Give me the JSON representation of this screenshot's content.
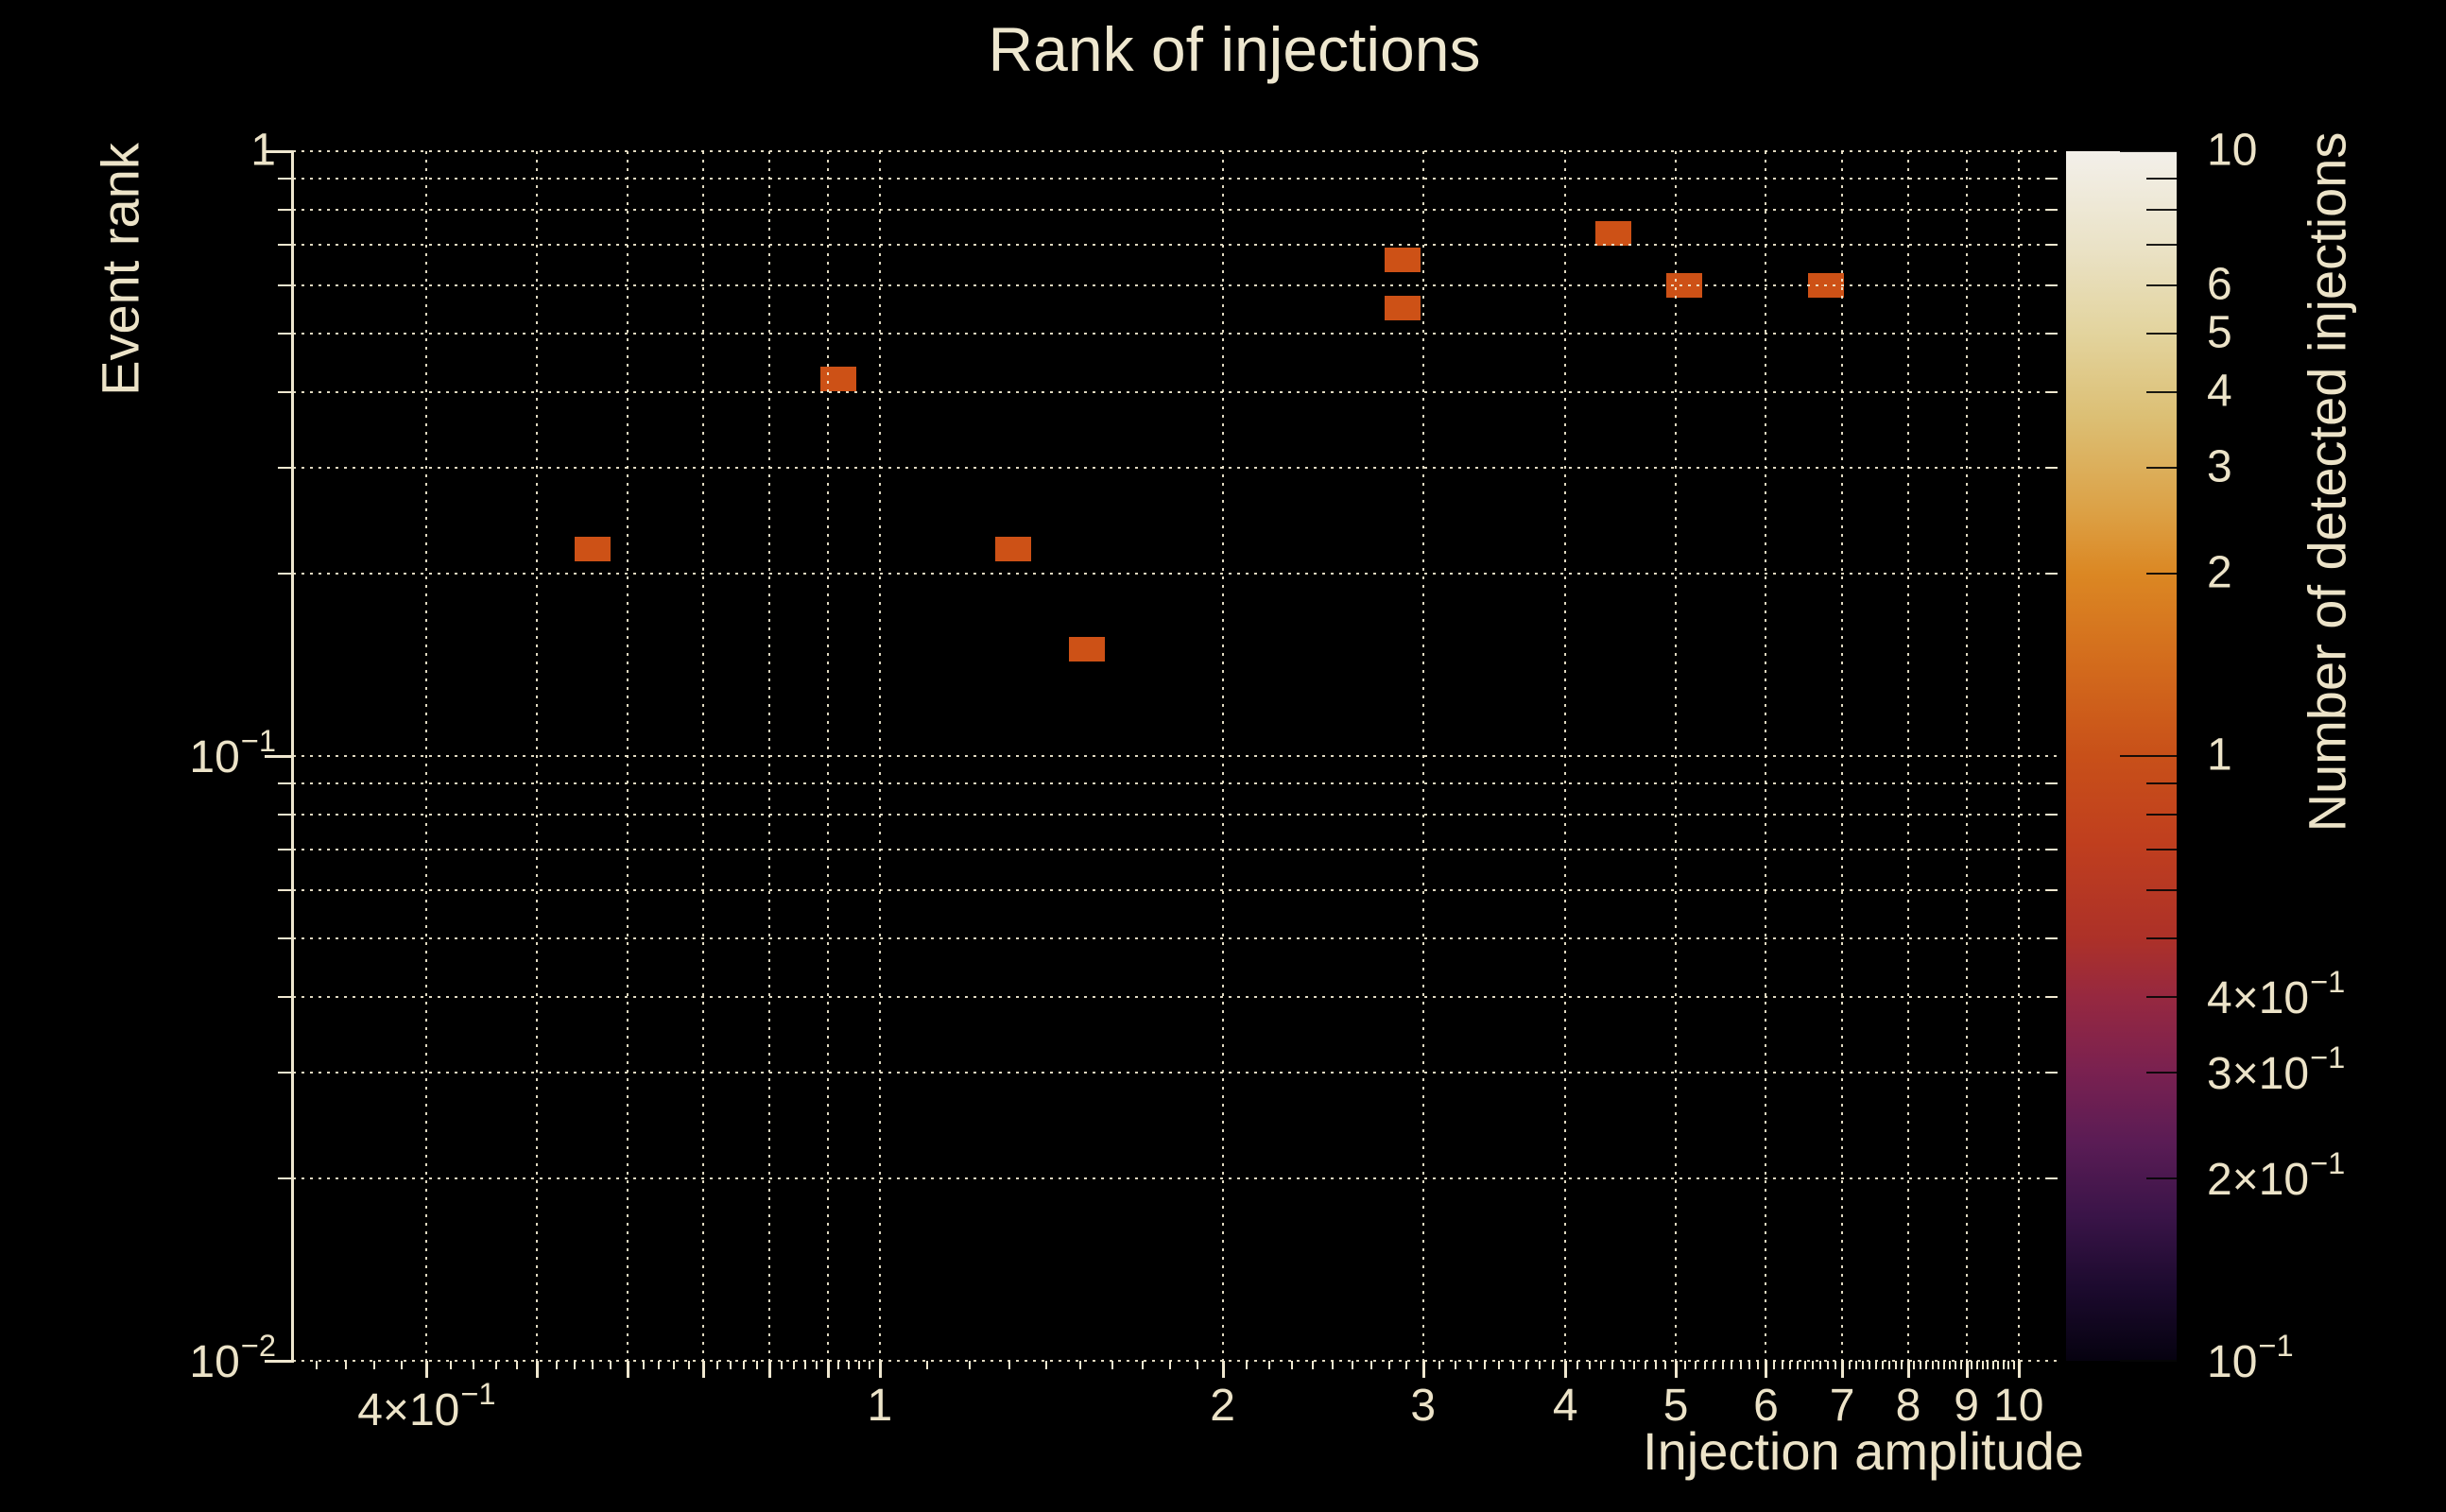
{
  "title": "Rank of injections",
  "colors": {
    "background": "#000000",
    "foreground": "#ece3c8",
    "grid": "#f2ead0",
    "bin_count_1": "#cd5116",
    "colorbar_gradient_stops": [
      {
        "t": 0.0,
        "color": "#f3f0ea"
      },
      {
        "t": 0.08,
        "color": "#eae2c6"
      },
      {
        "t": 0.15,
        "color": "#e3d49e"
      },
      {
        "t": 0.22,
        "color": "#dcbf74"
      },
      {
        "t": 0.3,
        "color": "#dca044"
      },
      {
        "t": 0.35,
        "color": "#db8723"
      },
      {
        "t": 0.43,
        "color": "#d2691c"
      },
      {
        "t": 0.5,
        "color": "#c85019"
      },
      {
        "t": 0.57,
        "color": "#c03f1e"
      },
      {
        "t": 0.65,
        "color": "#ad3128"
      },
      {
        "t": 0.7,
        "color": "#962840"
      },
      {
        "t": 0.76,
        "color": "#7a2150"
      },
      {
        "t": 0.82,
        "color": "#5a1c55"
      },
      {
        "t": 0.88,
        "color": "#3a1448"
      },
      {
        "t": 0.94,
        "color": "#1c0a2e"
      },
      {
        "t": 1.0,
        "color": "#060210"
      }
    ]
  },
  "chart_data": {
    "type": "heatmap",
    "title": "Rank of injections",
    "xlabel": "Injection amplitude",
    "ylabel": "Event rank",
    "colorbar_label": "Number of detected injections",
    "x_scale": "log",
    "y_scale": "log",
    "color_scale": "log",
    "xlim": [
      0.3053,
      10.82
    ],
    "ylim": [
      0.01,
      1.0
    ],
    "clim": [
      0.1,
      10
    ],
    "grid": true,
    "points": [
      {
        "x": 0.56,
        "y": 0.22,
        "count": 1
      },
      {
        "x": 0.92,
        "y": 0.42,
        "count": 1
      },
      {
        "x": 1.31,
        "y": 0.22,
        "count": 1
      },
      {
        "x": 1.52,
        "y": 0.15,
        "count": 1
      },
      {
        "x": 2.88,
        "y": 0.66,
        "count": 1
      },
      {
        "x": 2.88,
        "y": 0.55,
        "count": 1
      },
      {
        "x": 4.41,
        "y": 0.73,
        "count": 1
      },
      {
        "x": 5.09,
        "y": 0.6,
        "count": 1
      },
      {
        "x": 6.77,
        "y": 0.6,
        "count": 1
      }
    ],
    "x_ticks": [
      {
        "v": 0.4,
        "b": "4×10",
        "s": "−1"
      },
      {
        "v": 1,
        "b": "1"
      },
      {
        "v": 2,
        "b": "2"
      },
      {
        "v": 3,
        "b": "3"
      },
      {
        "v": 4,
        "b": "4"
      },
      {
        "v": 5,
        "b": "5"
      },
      {
        "v": 6,
        "b": "6"
      },
      {
        "v": 7,
        "b": "7"
      },
      {
        "v": 8,
        "b": "8"
      },
      {
        "v": 9,
        "b": "9"
      },
      {
        "v": 10,
        "b": "10"
      }
    ],
    "y_ticks": [
      {
        "v": 1,
        "b": "1"
      },
      {
        "v": 0.1,
        "b": "10",
        "s": "−1"
      },
      {
        "v": 0.01,
        "b": "10",
        "s": "−2"
      }
    ],
    "colorbar_ticks": [
      {
        "v": 10,
        "b": "10"
      },
      {
        "v": 6,
        "b": "6"
      },
      {
        "v": 5,
        "b": "5"
      },
      {
        "v": 4,
        "b": "4"
      },
      {
        "v": 3,
        "b": "3"
      },
      {
        "v": 2,
        "b": "2"
      },
      {
        "v": 1,
        "b": "1"
      },
      {
        "v": 0.4,
        "b": "4×10",
        "s": "−1"
      },
      {
        "v": 0.3,
        "b": "3×10",
        "s": "−1"
      },
      {
        "v": 0.2,
        "b": "2×10",
        "s": "−1"
      },
      {
        "v": 0.1,
        "b": "10",
        "s": "−1"
      }
    ],
    "x_gridline_values": [
      0.4,
      0.5,
      0.6,
      0.7,
      0.8,
      0.9,
      1,
      2,
      3,
      4,
      5,
      6,
      7,
      8,
      9,
      10
    ],
    "y_gridline_values": [
      1,
      0.9,
      0.8,
      0.7,
      0.6,
      0.5,
      0.4,
      0.3,
      0.2,
      0.1,
      0.09,
      0.08,
      0.07,
      0.06,
      0.05,
      0.04,
      0.03,
      0.02,
      0.01
    ]
  }
}
